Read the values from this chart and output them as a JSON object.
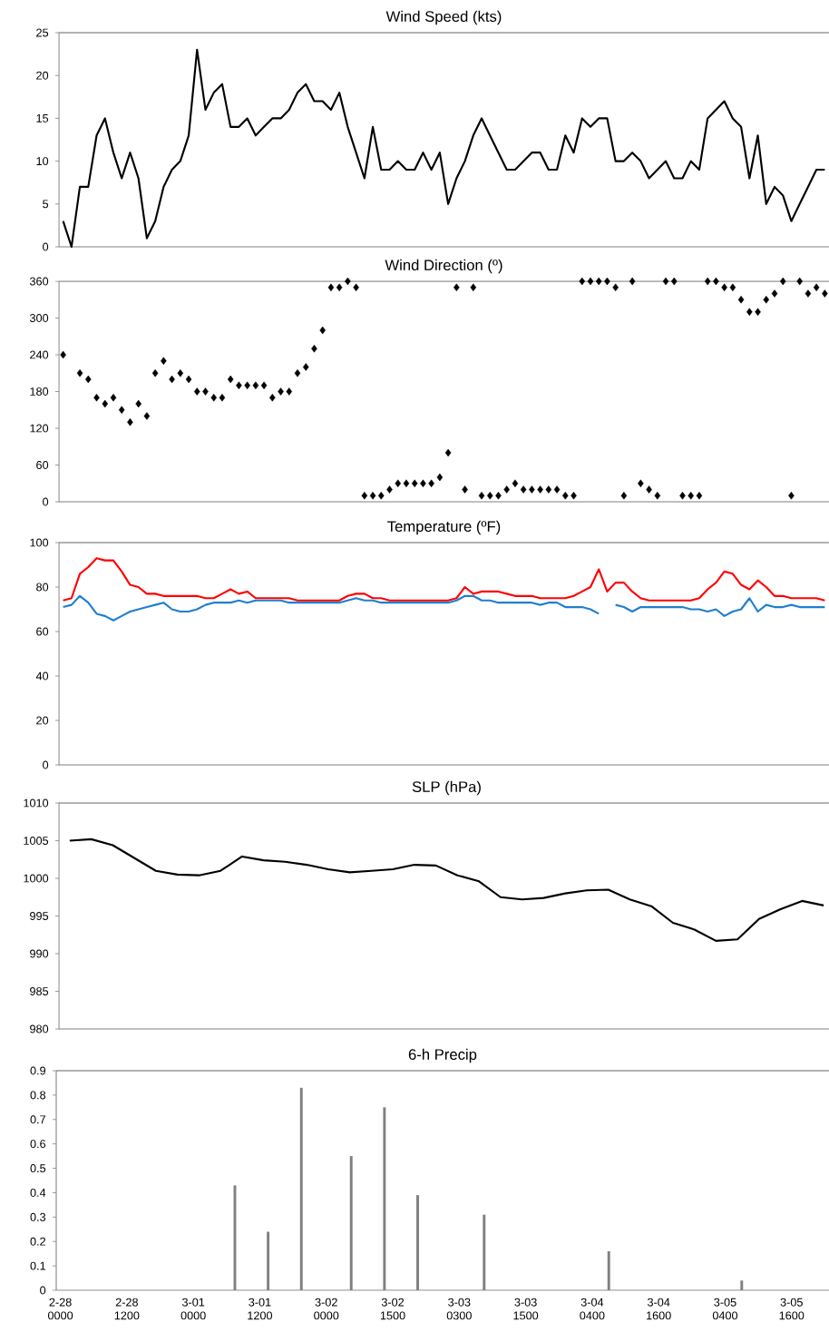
{
  "chart_data": [
    {
      "type": "line",
      "title": "Wind Speed (kts)",
      "color": "#000000",
      "tick_labels": "y",
      "ylim": [
        0,
        25
      ],
      "yticks": [
        0,
        5,
        10,
        15,
        20,
        25
      ],
      "categories": [
        null,
        null,
        null,
        null,
        null,
        null,
        null,
        null,
        null,
        null,
        null,
        null,
        null,
        null,
        null,
        null,
        null,
        null,
        null,
        null,
        null,
        null,
        null,
        null,
        null,
        null,
        null,
        null,
        null,
        null,
        null,
        null,
        null,
        null,
        null,
        null,
        null,
        null,
        null,
        null,
        null,
        null,
        null,
        null,
        null,
        null,
        null,
        null,
        null,
        null,
        null,
        null,
        null,
        null,
        null,
        null,
        null,
        null,
        null,
        null,
        null,
        null,
        null,
        null,
        null,
        null,
        null,
        null,
        null,
        null,
        null,
        null,
        null,
        null,
        null,
        null,
        null,
        null,
        null,
        null,
        null,
        null,
        null,
        null,
        null,
        null,
        null,
        null,
        null,
        null,
        null,
        null
      ],
      "values": [
        3,
        0,
        7,
        7,
        13,
        15,
        11,
        8,
        11,
        8,
        1,
        3,
        7,
        9,
        10,
        13,
        23,
        16,
        18,
        19,
        14,
        14,
        15,
        13,
        14,
        15,
        15,
        16,
        18,
        19,
        17,
        17,
        16,
        18,
        14,
        11,
        8,
        14,
        9,
        9,
        10,
        9,
        9,
        11,
        9,
        11,
        5,
        8,
        10,
        13,
        15,
        13,
        11,
        9,
        9,
        10,
        11,
        11,
        9,
        9,
        13,
        11,
        15,
        14,
        15,
        15,
        10,
        10,
        11,
        10,
        8,
        9,
        10,
        8,
        8,
        10,
        9,
        15,
        16,
        17,
        15,
        14,
        8,
        13,
        5,
        7,
        6,
        3,
        5,
        7,
        9,
        9
      ]
    },
    {
      "type": "scatter",
      "title": "Wind Direction (º)",
      "color": "#000000",
      "marker": "diamond",
      "tick_labels": "y",
      "ylim": [
        0,
        360
      ],
      "yticks": [
        0,
        60,
        120,
        180,
        240,
        300,
        360
      ],
      "categories": [
        null,
        null,
        null,
        null,
        null,
        null,
        null,
        null,
        null,
        null,
        null,
        null,
        null,
        null,
        null,
        null,
        null,
        null,
        null,
        null,
        null,
        null,
        null,
        null,
        null,
        null,
        null,
        null,
        null,
        null,
        null,
        null,
        null,
        null,
        null,
        null,
        null,
        null,
        null,
        null,
        null,
        null,
        null,
        null,
        null,
        null,
        null,
        null,
        null,
        null,
        null,
        null,
        null,
        null,
        null,
        null,
        null,
        null,
        null,
        null,
        null,
        null,
        null,
        null,
        null,
        null,
        null,
        null,
        null,
        null,
        null,
        null,
        null,
        null,
        null,
        null,
        null,
        null,
        null,
        null,
        null,
        null,
        null,
        null,
        null,
        null,
        null,
        null,
        null,
        null,
        null,
        null
      ],
      "values": [
        240,
        null,
        210,
        200,
        170,
        160,
        170,
        150,
        130,
        160,
        140,
        210,
        230,
        200,
        210,
        200,
        180,
        180,
        170,
        170,
        200,
        190,
        190,
        190,
        190,
        170,
        180,
        180,
        210,
        220,
        250,
        280,
        350,
        350,
        360,
        350,
        10,
        10,
        10,
        20,
        30,
        30,
        30,
        30,
        30,
        40,
        80,
        350,
        20,
        350,
        10,
        10,
        10,
        20,
        30,
        20,
        20,
        20,
        20,
        20,
        10,
        10,
        360,
        360,
        360,
        360,
        350,
        10,
        360,
        30,
        20,
        10,
        360,
        360,
        10,
        10,
        10,
        360,
        360,
        350,
        350,
        330,
        310,
        310,
        330,
        340,
        360,
        10,
        360,
        340,
        350,
        340
      ]
    },
    {
      "type": "line",
      "title": "Temperature  (ºF)",
      "tick_labels": "y",
      "ylim": [
        0,
        100
      ],
      "yticks": [
        0,
        20,
        40,
        60,
        80,
        100
      ],
      "categories": [
        null,
        null,
        null,
        null,
        null,
        null,
        null,
        null,
        null,
        null,
        null,
        null,
        null,
        null,
        null,
        null,
        null,
        null,
        null,
        null,
        null,
        null,
        null,
        null,
        null,
        null,
        null,
        null,
        null,
        null,
        null,
        null,
        null,
        null,
        null,
        null,
        null,
        null,
        null,
        null,
        null,
        null,
        null,
        null,
        null,
        null,
        null,
        null,
        null,
        null,
        null,
        null,
        null,
        null,
        null,
        null,
        null,
        null,
        null,
        null,
        null,
        null,
        null,
        null,
        null,
        null,
        null,
        null,
        null,
        null,
        null,
        null,
        null,
        null,
        null,
        null,
        null,
        null,
        null,
        null,
        null,
        null,
        null,
        null,
        null,
        null,
        null,
        null,
        null,
        null,
        null,
        null
      ],
      "series": [
        {
          "color": "#ff0000",
          "values": [
            74,
            75,
            86,
            89,
            93,
            92,
            92,
            87,
            81,
            80,
            77,
            77,
            76,
            76,
            76,
            76,
            76,
            75,
            75,
            77,
            79,
            77,
            78,
            75,
            75,
            75,
            75,
            75,
            74,
            74,
            74,
            74,
            74,
            74,
            76,
            77,
            77,
            75,
            75,
            74,
            74,
            74,
            74,
            74,
            74,
            74,
            74,
            75,
            80,
            77,
            78,
            78,
            78,
            77,
            76,
            76,
            76,
            75,
            75,
            75,
            75,
            76,
            78,
            80,
            88,
            78,
            82,
            82,
            78,
            75,
            74,
            74,
            74,
            74,
            74,
            74,
            75,
            79,
            82,
            87,
            86,
            81,
            79,
            83,
            80,
            76,
            76,
            75,
            75,
            75,
            75,
            74
          ]
        },
        {
          "color": "#1f7fcf",
          "values": [
            71,
            72,
            76,
            73,
            68,
            67,
            65,
            67,
            69,
            70,
            71,
            72,
            73,
            70,
            69,
            69,
            70,
            72,
            73,
            73,
            73,
            74,
            73,
            74,
            74,
            74,
            74,
            73,
            73,
            73,
            73,
            73,
            73,
            73,
            74,
            75,
            74,
            74,
            73,
            73,
            73,
            73,
            73,
            73,
            73,
            73,
            73,
            74,
            76,
            76,
            74,
            74,
            73,
            73,
            73,
            73,
            73,
            72,
            73,
            73,
            71,
            71,
            71,
            70,
            68,
            null,
            72,
            71,
            69,
            71,
            71,
            71,
            71,
            71,
            71,
            70,
            70,
            69,
            70,
            67,
            69,
            70,
            75,
            69,
            72,
            71,
            71,
            72,
            71,
            71,
            71,
            71
          ]
        }
      ]
    },
    {
      "type": "line",
      "title": "SLP (hPa)",
      "color": "#000000",
      "tick_labels": "y",
      "ylim": [
        980,
        1010
      ],
      "yticks": [
        980,
        985,
        990,
        995,
        1000,
        1005,
        1010
      ],
      "categories": [
        null,
        null,
        null,
        null,
        null,
        null,
        null,
        null,
        null,
        null,
        null,
        null,
        null,
        null,
        null,
        null,
        null,
        null,
        null,
        null,
        null,
        null,
        null,
        null,
        null,
        null,
        null,
        null,
        null,
        null,
        null,
        null,
        null,
        null,
        null,
        null
      ],
      "values": [
        1005,
        1005.2,
        1004.4,
        1002.7,
        1001,
        1000.5,
        1000.4,
        1001,
        1002.9,
        1002.4,
        1002.2,
        1001.8,
        1001.2,
        1000.8,
        1001,
        1001.2,
        1001.8,
        1001.7,
        1000.4,
        999.6,
        997.5,
        997.2,
        997.4,
        998,
        998.4,
        998.5,
        997.2,
        996.3,
        994.1,
        993.2,
        991.7,
        991.9,
        994.6,
        995.9,
        997,
        996.4
      ]
    },
    {
      "type": "bar",
      "title": "6-h Precip",
      "color": "#808080",
      "ylim": [
        0,
        0.9
      ],
      "yticks": [
        0,
        0.1,
        0.2,
        0.3,
        0.4,
        0.5,
        0.6,
        0.7,
        0.8,
        0.9
      ],
      "categories": [
        "2-28 0000",
        null,
        null,
        null,
        null,
        null,
        null,
        null,
        "2-28 1200",
        null,
        null,
        null,
        null,
        null,
        null,
        null,
        "3-01 0000",
        null,
        null,
        null,
        null,
        null,
        null,
        null,
        "3-01 1200",
        null,
        null,
        null,
        null,
        null,
        null,
        null,
        "3-02 0000",
        null,
        null,
        null,
        null,
        null,
        null,
        null,
        "3-02 1500",
        null,
        null,
        null,
        null,
        null,
        null,
        null,
        "3-03 0300",
        null,
        null,
        null,
        null,
        null,
        null,
        null,
        "3-03 1500",
        null,
        null,
        null,
        null,
        null,
        null,
        null,
        "3-04 0400",
        null,
        null,
        null,
        null,
        null,
        null,
        null,
        "3-04 1600",
        null,
        null,
        null,
        null,
        null,
        null,
        null,
        "3-05 0400",
        null,
        null,
        null,
        null,
        null,
        null,
        null,
        "3-05 1600",
        null,
        null,
        null,
        null
      ],
      "values": [
        null,
        null,
        null,
        null,
        null,
        null,
        null,
        null,
        null,
        null,
        null,
        null,
        null,
        null,
        null,
        null,
        null,
        null,
        null,
        null,
        null,
        0.43,
        null,
        null,
        null,
        0.24,
        null,
        null,
        null,
        0.83,
        null,
        null,
        null,
        null,
        null,
        0.55,
        null,
        null,
        null,
        0.75,
        null,
        null,
        null,
        0.39,
        null,
        null,
        null,
        null,
        null,
        null,
        null,
        0.31,
        null,
        null,
        null,
        null,
        null,
        null,
        null,
        null,
        null,
        null,
        null,
        null,
        null,
        null,
        0.16,
        null,
        null,
        null,
        null,
        null,
        null,
        null,
        null,
        null,
        null,
        null,
        null,
        null,
        null,
        null,
        0.04,
        null,
        null,
        null,
        null,
        null,
        null,
        null,
        null,
        null,
        null
      ]
    }
  ]
}
